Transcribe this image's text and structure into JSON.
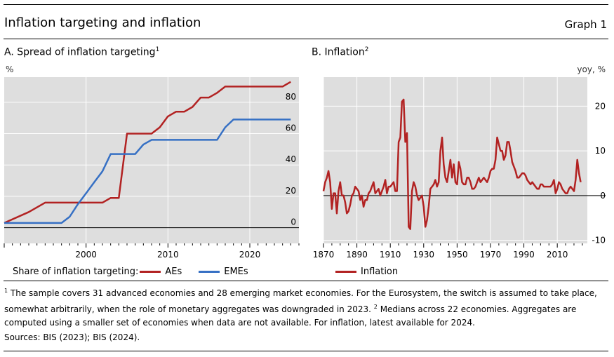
{
  "header": {
    "title": "Inflation targeting and inflation",
    "graph_label": "Graph 1"
  },
  "chart_data": [
    {
      "type": "line",
      "title": "A. Spread of inflation targeting",
      "title_footnote": "1",
      "ylabel": "%",
      "xlim": [
        1990,
        2026
      ],
      "ylim": [
        -10,
        96
      ],
      "y_ticks": [
        0,
        20,
        40,
        60,
        80
      ],
      "x_ticks": [
        2000,
        2010,
        2020
      ],
      "grid": true,
      "legend_title": "Share of inflation targeting:",
      "legend_position": "bottom",
      "series": [
        {
          "name": "AEs",
          "color": "#b22222",
          "points": [
            [
              1990,
              3
            ],
            [
              1993,
              10
            ],
            [
              1995,
              16
            ],
            [
              2000,
              16
            ],
            [
              2001,
              16
            ],
            [
              2002,
              16
            ],
            [
              2003,
              19
            ],
            [
              2004,
              19
            ],
            [
              2005,
              60
            ],
            [
              2006,
              60
            ],
            [
              2007,
              60
            ],
            [
              2008,
              60
            ],
            [
              2009,
              64
            ],
            [
              2010,
              71
            ],
            [
              2011,
              74
            ],
            [
              2012,
              74
            ],
            [
              2013,
              77
            ],
            [
              2014,
              83
            ],
            [
              2015,
              83
            ],
            [
              2016,
              86
            ],
            [
              2017,
              90
            ],
            [
              2018,
              90
            ],
            [
              2019,
              90
            ],
            [
              2020,
              90
            ],
            [
              2021,
              90
            ],
            [
              2022,
              90
            ],
            [
              2023,
              90
            ],
            [
              2024,
              90
            ],
            [
              2025,
              93
            ]
          ]
        },
        {
          "name": "EMEs",
          "color": "#3670c4",
          "points": [
            [
              1990,
              3
            ],
            [
              1993,
              3
            ],
            [
              1996,
              3
            ],
            [
              1997,
              3
            ],
            [
              1998,
              7
            ],
            [
              1999,
              15
            ],
            [
              2000,
              22
            ],
            [
              2001,
              29
            ],
            [
              2002,
              36
            ],
            [
              2003,
              47
            ],
            [
              2004,
              47
            ],
            [
              2005,
              47
            ],
            [
              2006,
              47
            ],
            [
              2007,
              53
            ],
            [
              2008,
              56
            ],
            [
              2009,
              56
            ],
            [
              2010,
              56
            ],
            [
              2011,
              56
            ],
            [
              2012,
              56
            ],
            [
              2013,
              56
            ],
            [
              2014,
              56
            ],
            [
              2015,
              56
            ],
            [
              2016,
              56
            ],
            [
              2017,
              64
            ],
            [
              2018,
              69
            ],
            [
              2019,
              69
            ],
            [
              2020,
              69
            ],
            [
              2021,
              69
            ],
            [
              2022,
              69
            ],
            [
              2023,
              69
            ],
            [
              2024,
              69
            ],
            [
              2025,
              69
            ]
          ]
        }
      ]
    },
    {
      "type": "line",
      "title": "B. Inflation",
      "title_footnote": "2",
      "ylabel": "yoy, %",
      "xlim": [
        1870,
        2028
      ],
      "ylim": [
        -10.7,
        26.5
      ],
      "y_ticks": [
        -10,
        0,
        10,
        20
      ],
      "x_ticks": [
        1870,
        1890,
        1910,
        1930,
        1950,
        1970,
        1990,
        2010
      ],
      "grid": true,
      "legend_position": "bottom",
      "series": [
        {
          "name": "Inflation",
          "color": "#b22222",
          "points": [
            [
              1870,
              1
            ],
            [
              1871,
              3
            ],
            [
              1872,
              4
            ],
            [
              1873,
              5.5
            ],
            [
              1874,
              3
            ],
            [
              1875,
              -3
            ],
            [
              1876,
              0.5
            ],
            [
              1877,
              0.5
            ],
            [
              1878,
              -4
            ],
            [
              1879,
              1
            ],
            [
              1880,
              3
            ],
            [
              1881,
              0
            ],
            [
              1882,
              0
            ],
            [
              1883,
              -1.5
            ],
            [
              1884,
              -4
            ],
            [
              1885,
              -3.5
            ],
            [
              1886,
              -2
            ],
            [
              1887,
              0
            ],
            [
              1888,
              0.5
            ],
            [
              1889,
              2
            ],
            [
              1890,
              1.5
            ],
            [
              1891,
              1
            ],
            [
              1892,
              -1
            ],
            [
              1893,
              0
            ],
            [
              1894,
              -2.5
            ],
            [
              1895,
              -1
            ],
            [
              1896,
              -1
            ],
            [
              1897,
              0.5
            ],
            [
              1898,
              1
            ],
            [
              1899,
              2
            ],
            [
              1900,
              3
            ],
            [
              1901,
              0.5
            ],
            [
              1902,
              1
            ],
            [
              1903,
              1.5
            ],
            [
              1904,
              0
            ],
            [
              1905,
              1
            ],
            [
              1906,
              2
            ],
            [
              1907,
              3.5
            ],
            [
              1908,
              0.5
            ],
            [
              1909,
              2
            ],
            [
              1910,
              2
            ],
            [
              1911,
              2.5
            ],
            [
              1912,
              3
            ],
            [
              1913,
              1
            ],
            [
              1914,
              1
            ],
            [
              1915,
              12
            ],
            [
              1916,
              13
            ],
            [
              1917,
              21
            ],
            [
              1918,
              21.5
            ],
            [
              1919,
              12
            ],
            [
              1920,
              14
            ],
            [
              1921,
              -7
            ],
            [
              1922,
              -7.5
            ],
            [
              1923,
              1
            ],
            [
              1924,
              3
            ],
            [
              1925,
              2
            ],
            [
              1926,
              0
            ],
            [
              1927,
              -1
            ],
            [
              1928,
              -0.5
            ],
            [
              1929,
              0
            ],
            [
              1930,
              -2.5
            ],
            [
              1931,
              -7
            ],
            [
              1932,
              -5.5
            ],
            [
              1933,
              -2.5
            ],
            [
              1934,
              1.5
            ],
            [
              1935,
              2
            ],
            [
              1936,
              2.5
            ],
            [
              1937,
              3.5
            ],
            [
              1938,
              2
            ],
            [
              1939,
              3
            ],
            [
              1940,
              10
            ],
            [
              1941,
              13
            ],
            [
              1942,
              7
            ],
            [
              1943,
              4
            ],
            [
              1944,
              3
            ],
            [
              1945,
              5.5
            ],
            [
              1946,
              8
            ],
            [
              1947,
              4
            ],
            [
              1948,
              7
            ],
            [
              1949,
              3
            ],
            [
              1950,
              2.5
            ],
            [
              1951,
              7.5
            ],
            [
              1952,
              6
            ],
            [
              1953,
              3
            ],
            [
              1954,
              2.5
            ],
            [
              1955,
              2.5
            ],
            [
              1956,
              4
            ],
            [
              1957,
              4
            ],
            [
              1958,
              3
            ],
            [
              1959,
              1.5
            ],
            [
              1960,
              1.5
            ],
            [
              1961,
              2
            ],
            [
              1962,
              3
            ],
            [
              1963,
              4
            ],
            [
              1964,
              3
            ],
            [
              1965,
              3.5
            ],
            [
              1966,
              4
            ],
            [
              1967,
              3.5
            ],
            [
              1968,
              3
            ],
            [
              1969,
              4
            ],
            [
              1970,
              5.5
            ],
            [
              1971,
              6
            ],
            [
              1972,
              6
            ],
            [
              1973,
              8
            ],
            [
              1974,
              13
            ],
            [
              1975,
              11.5
            ],
            [
              1976,
              10
            ],
            [
              1977,
              10
            ],
            [
              1978,
              8
            ],
            [
              1979,
              9
            ],
            [
              1980,
              12
            ],
            [
              1981,
              12
            ],
            [
              1982,
              10
            ],
            [
              1983,
              7.5
            ],
            [
              1984,
              6.5
            ],
            [
              1985,
              5.5
            ],
            [
              1986,
              4
            ],
            [
              1987,
              4
            ],
            [
              1988,
              4.5
            ],
            [
              1989,
              5
            ],
            [
              1990,
              5
            ],
            [
              1991,
              4.5
            ],
            [
              1992,
              3.5
            ],
            [
              1993,
              3
            ],
            [
              1994,
              2.5
            ],
            [
              1995,
              3
            ],
            [
              1996,
              2.5
            ],
            [
              1997,
              2
            ],
            [
              1998,
              1.5
            ],
            [
              1999,
              1.5
            ],
            [
              2000,
              2.5
            ],
            [
              2001,
              2.5
            ],
            [
              2002,
              2
            ],
            [
              2003,
              2
            ],
            [
              2004,
              2
            ],
            [
              2005,
              2
            ],
            [
              2006,
              2
            ],
            [
              2007,
              2.5
            ],
            [
              2008,
              3.5
            ],
            [
              2009,
              0.5
            ],
            [
              2010,
              1.5
            ],
            [
              2011,
              3
            ],
            [
              2012,
              2.5
            ],
            [
              2013,
              1.5
            ],
            [
              2014,
              1
            ],
            [
              2015,
              0.5
            ],
            [
              2016,
              0.5
            ],
            [
              2017,
              1.5
            ],
            [
              2018,
              2
            ],
            [
              2019,
              1.5
            ],
            [
              2020,
              1
            ],
            [
              2021,
              3.5
            ],
            [
              2022,
              8
            ],
            [
              2023,
              5
            ],
            [
              2024,
              3
            ]
          ]
        }
      ]
    }
  ],
  "footnotes": {
    "note1_marker": "1",
    "note1_text": "The sample covers 31 advanced economies and 28 emerging market economies. For the Eurosystem, the switch is assumed to take place, somewhat arbitrarily, when the role of monetary aggregates was downgraded in 2023.",
    "note2_marker": "2",
    "note2_text": "Medians across 22 economies. Aggregates are computed using a smaller set of economies when data are not available. For inflation, latest available for 2024.",
    "sources": "Sources: BIS (2023); BIS (2024)."
  },
  "colors": {
    "plot_bg": "#dedede",
    "grid": "#ffffff",
    "ae": "#b22222",
    "eme": "#3670c4"
  }
}
